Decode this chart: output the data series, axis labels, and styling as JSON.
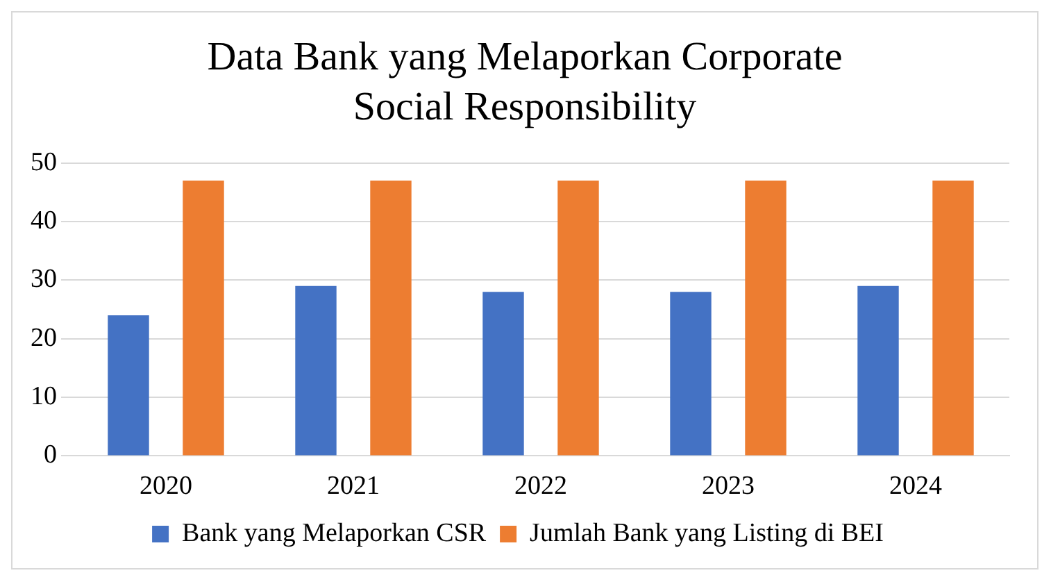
{
  "chart_data": {
    "type": "bar",
    "title": "Data Bank yang Melaporkan Corporate Social Responsibility",
    "categories": [
      "2020",
      "2021",
      "2022",
      "2023",
      "2024"
    ],
    "series": [
      {
        "name": "Bank yang Melaporkan CSR",
        "color": "#4472c4",
        "values": [
          24,
          29,
          28,
          28,
          29
        ]
      },
      {
        "name": "Jumlah Bank yang Listing di BEI",
        "color": "#ed7d31",
        "values": [
          47,
          47,
          47,
          47,
          47
        ]
      }
    ],
    "ylim": [
      0,
      50
    ],
    "yticks": [
      0,
      10,
      20,
      30,
      40,
      50
    ],
    "grid": "y",
    "legend": "bottom"
  }
}
